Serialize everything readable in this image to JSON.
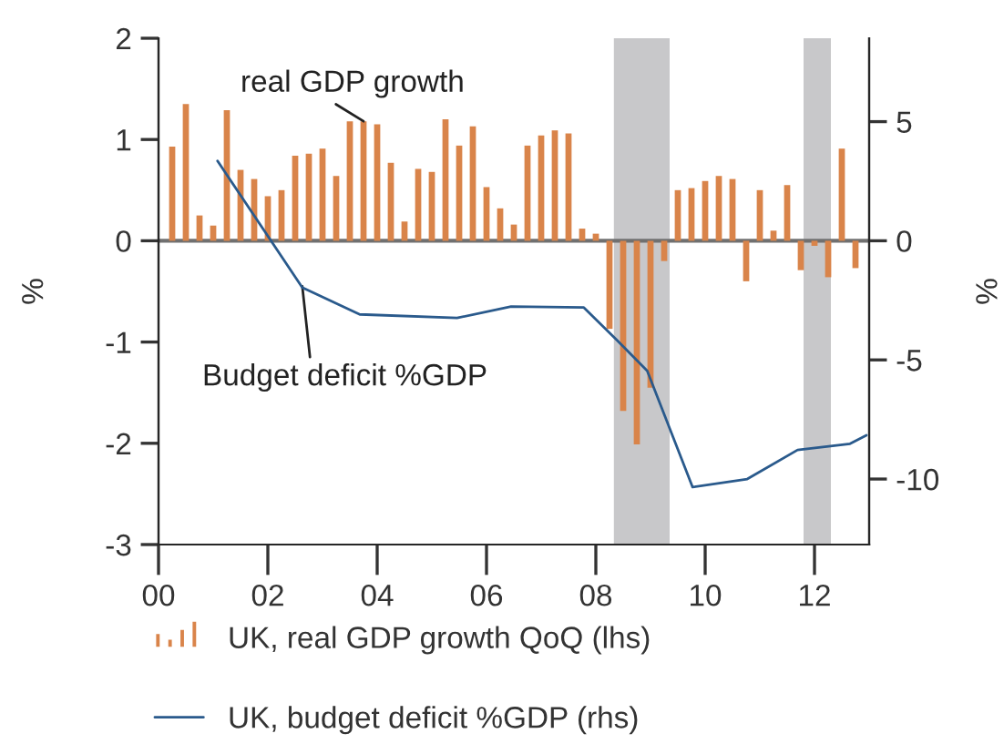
{
  "chart_data": {
    "type": "bar",
    "xlim": [
      2000,
      2013
    ],
    "xticks": [
      {
        "value": 2000,
        "label": "00"
      },
      {
        "value": 2002,
        "label": "02"
      },
      {
        "value": 2004,
        "label": "04"
      },
      {
        "value": 2006,
        "label": "06"
      },
      {
        "value": 2008,
        "label": "08"
      },
      {
        "value": 2010,
        "label": "10"
      },
      {
        "value": 2012,
        "label": "12"
      }
    ],
    "ylabel": "%",
    "y2label": "%",
    "ylim": [
      -3,
      2
    ],
    "yticks": [
      -3,
      -2,
      -1,
      0,
      1,
      2
    ],
    "y2lim": [
      -12.75,
      8.5
    ],
    "y2ticks": [
      -10,
      -5,
      0,
      5
    ],
    "series": [
      {
        "name": "UK, real GDP growth QoQ (lhs)",
        "type": "bar",
        "color": "#d9844a",
        "x": [
          2000.25,
          2000.5,
          2000.75,
          2001,
          2001.25,
          2001.5,
          2001.75,
          2002,
          2002.25,
          2002.5,
          2002.75,
          2003,
          2003.25,
          2003.5,
          2003.75,
          2004,
          2004.25,
          2004.5,
          2004.75,
          2005,
          2005.25,
          2005.5,
          2005.75,
          2006,
          2006.25,
          2006.5,
          2006.75,
          2007,
          2007.25,
          2007.5,
          2007.75,
          2008,
          2008.25,
          2008.5,
          2008.75,
          2009,
          2009.25,
          2009.5,
          2009.75,
          2010,
          2010.25,
          2010.5,
          2010.75,
          2011,
          2011.25,
          2011.5,
          2011.75,
          2012,
          2012.25,
          2012.5,
          2012.75
        ],
        "values": [
          0.93,
          1.35,
          0.25,
          0.15,
          1.29,
          0.7,
          0.61,
          0.44,
          0.5,
          0.84,
          0.86,
          0.91,
          0.64,
          1.18,
          1.18,
          1.15,
          0.77,
          0.19,
          0.71,
          0.68,
          1.2,
          0.94,
          1.13,
          0.53,
          0.32,
          0.16,
          0.94,
          1.04,
          1.09,
          1.06,
          0.12,
          0.07,
          -0.87,
          -1.68,
          -2.01,
          -1.45,
          -0.2,
          0.5,
          0.52,
          0.59,
          0.64,
          0.61,
          -0.4,
          0.5,
          0.1,
          0.55,
          -0.29,
          -0.05,
          -0.36,
          0.91,
          -0.27
        ]
      },
      {
        "name": "UK, budget deficit %GDP (rhs)",
        "type": "line",
        "axis": "y2",
        "color": "#2a5a8c",
        "x": [
          2001.08,
          2002.63,
          2003.68,
          2005.46,
          2006.45,
          2007.78,
          2008.39,
          2008.94,
          2009.77,
          2010.77,
          2011.69,
          2012.65,
          2012.95
        ],
        "values": [
          3.35,
          -1.96,
          -3.09,
          -3.24,
          -2.76,
          -2.8,
          -4.18,
          -5.46,
          -10.34,
          -10.0,
          -8.78,
          -8.52,
          -8.16
        ]
      }
    ],
    "bands": [
      {
        "axis": "x",
        "from": 2008.33,
        "to": 2009.35,
        "color": "#c8c8ca"
      },
      {
        "axis": "x",
        "from": 2011.8,
        "to": 2012.3,
        "color": "#c8c8ca"
      }
    ],
    "ref_lines": [
      {
        "axis": "y",
        "value": 0,
        "color": "#707070"
      }
    ],
    "annotations": [
      {
        "text": "real GDP growth",
        "x": 2003.75,
        "y": 1.18
      },
      {
        "text": "Budget deficit %GDP",
        "x": 2002.63,
        "y": -0.45
      }
    ],
    "grid": false,
    "legend": "bottom"
  }
}
